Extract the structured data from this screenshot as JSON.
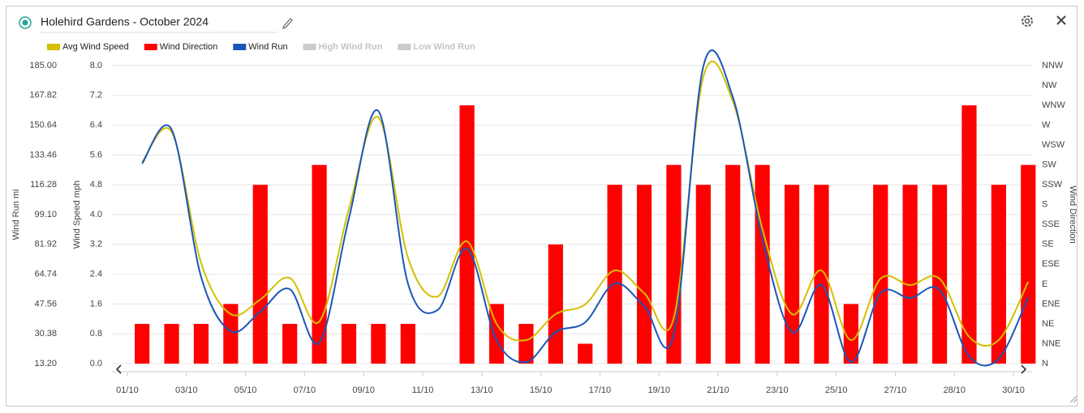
{
  "chart_data": {
    "type": "combo",
    "title": "Holehird Gardens - October 2024",
    "x": [
      0.5,
      1.5,
      2.5,
      3.5,
      4.5,
      5.5,
      6.5,
      7.5,
      8.5,
      9.5,
      10.5,
      11.5,
      12.5,
      13.5,
      14.5,
      15.5,
      16.5,
      17.5,
      18.5,
      19.5,
      20.5,
      21.5,
      22.5,
      23.5,
      24.5,
      25.5,
      26.5,
      27.5,
      28.5,
      29.5,
      30.5
    ],
    "xlim": [
      -0.52,
      30.63
    ],
    "xticks": [
      {
        "value": 0,
        "label": "01/10"
      },
      {
        "value": 2,
        "label": "03/10"
      },
      {
        "value": 4,
        "label": "05/10"
      },
      {
        "value": 6,
        "label": "07/10"
      },
      {
        "value": 8,
        "label": "09/10"
      },
      {
        "value": 10,
        "label": "11/10"
      },
      {
        "value": 12,
        "label": "13/10"
      },
      {
        "value": 14,
        "label": "15/10"
      },
      {
        "value": 16,
        "label": "17/10"
      },
      {
        "value": 18,
        "label": "19/10"
      },
      {
        "value": 20,
        "label": "21/10"
      },
      {
        "value": 22,
        "label": "23/10"
      },
      {
        "value": 24,
        "label": "25/10"
      },
      {
        "value": 26,
        "label": "27/10"
      },
      {
        "value": 28,
        "label": "28/10"
      },
      {
        "value": 30,
        "label": "30/10"
      }
    ],
    "ylabel": "Wind Speed mph",
    "ylim": [
      0,
      8
    ],
    "yticks": [
      {
        "value": 0,
        "label": "0.0"
      },
      {
        "value": 0.8,
        "label": "0.8"
      },
      {
        "value": 1.6,
        "label": "1.6"
      },
      {
        "value": 2.4,
        "label": "2.4"
      },
      {
        "value": 3.2,
        "label": "3.2"
      },
      {
        "value": 4,
        "label": "4.0"
      },
      {
        "value": 4.8,
        "label": "4.8"
      },
      {
        "value": 5.6,
        "label": "5.6"
      },
      {
        "value": 6.4,
        "label": "6.4"
      },
      {
        "value": 7.2,
        "label": "7.2"
      },
      {
        "value": 8,
        "label": "8.0"
      }
    ],
    "y3label": "Wind Run mi",
    "y3lim": [
      13.2,
      185
    ],
    "y3ticks": [
      {
        "value": 13.2,
        "label": "13.20"
      },
      {
        "value": 30.38,
        "label": "30.38"
      },
      {
        "value": 47.56,
        "label": "47.56"
      },
      {
        "value": 64.74,
        "label": "64.74"
      },
      {
        "value": 81.92,
        "label": "81.92"
      },
      {
        "value": 99.1,
        "label": "99.10"
      },
      {
        "value": 116.28,
        "label": "116.28"
      },
      {
        "value": 133.46,
        "label": "133.46"
      },
      {
        "value": 150.64,
        "label": "150.64"
      },
      {
        "value": 167.82,
        "label": "167.82"
      },
      {
        "value": 185,
        "label": "185.00"
      }
    ],
    "y2label": "Wind Direction",
    "y2categories": [
      "N",
      "NNE",
      "NE",
      "ENE",
      "E",
      "ESE",
      "SE",
      "SSE",
      "S",
      "SSW",
      "SW",
      "WSW",
      "W",
      "WNW",
      "NW",
      "NNW"
    ],
    "grid": true,
    "series": [
      {
        "name": "Avg Wind Speed",
        "type": "line",
        "axis": "y",
        "color": "#d4bf00",
        "values": [
          5.41,
          6.22,
          2.7,
          1.33,
          1.72,
          2.3,
          1.13,
          4.15,
          6.61,
          2.85,
          1.8,
          3.28,
          1.07,
          0.63,
          1.33,
          1.59,
          2.5,
          1.89,
          1.22,
          7.7,
          7.04,
          3.61,
          1.33,
          2.5,
          0.63,
          2.28,
          2.11,
          2.28,
          0.72,
          0.63,
          2.2
        ]
      },
      {
        "name": "Wind Direction",
        "type": "bar",
        "axis": "y2",
        "color": "#ff0000",
        "values": [
          "NE",
          "NE",
          "NE",
          "ENE",
          "SSW",
          "NE",
          "SW",
          "NE",
          "NE",
          "NE",
          null,
          "WNW",
          "ENE",
          "NE",
          "SE",
          "NNE",
          "SSW",
          "SSW",
          "SW",
          "SSW",
          "SW",
          "SW",
          "SSW",
          "SSW",
          "ENE",
          "SSW",
          "SSW",
          "SSW",
          "WNW",
          "SSW",
          "SW"
        ]
      },
      {
        "name": "Wind Run",
        "type": "line",
        "axis": "y3",
        "color": "#1a56b8",
        "values": [
          128.5,
          148.1,
          63.1,
          31.9,
          43.1,
          56.1,
          25.3,
          96.8,
          158.8,
          59.4,
          44.0,
          79.5,
          26.7,
          14.1,
          31.4,
          37.0,
          59.4,
          46.3,
          30.0,
          184.5,
          166.8,
          85.1,
          31.4,
          58.5,
          14.1,
          53.8,
          51.0,
          55.7,
          17.4,
          16.0,
          51.5
        ]
      },
      {
        "name": "High Wind Run",
        "hidden": true,
        "color": "#cccccc"
      },
      {
        "name": "Low Wind Run",
        "hidden": true,
        "color": "#cccccc"
      }
    ]
  }
}
